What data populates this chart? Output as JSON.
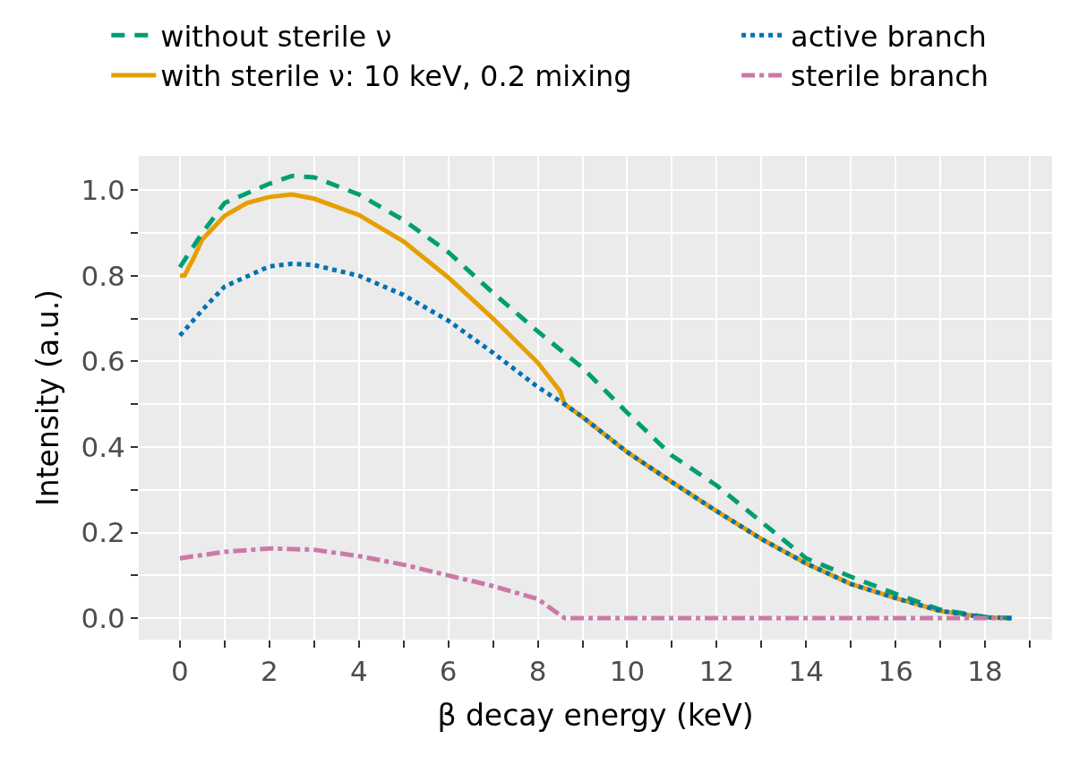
{
  "chart_data": {
    "type": "line",
    "xlabel": "β decay energy (keV)",
    "ylabel": "Intensity (a.u.)",
    "xlim": [
      -0.92,
      19.5
    ],
    "ylim": [
      -0.05,
      1.08
    ],
    "xticks": [
      0,
      {
        "value": 1,
        "label": null
      },
      2,
      {
        "value": 3,
        "label": null
      },
      4,
      {
        "value": 5,
        "label": null
      },
      6,
      {
        "value": 7,
        "label": null
      },
      8,
      {
        "value": 9,
        "label": null
      },
      10,
      {
        "value": 11,
        "label": null
      },
      12,
      {
        "value": 13,
        "label": null
      },
      14,
      {
        "value": 15,
        "label": null
      },
      16,
      {
        "value": 17,
        "label": null
      },
      18,
      {
        "value": 19,
        "label": null
      }
    ],
    "yticks": [
      {
        "value": 0,
        "label": "0.0"
      },
      {
        "value": 0.1,
        "label": null
      },
      {
        "value": 0.2,
        "label": "0.2"
      },
      {
        "value": 0.3,
        "label": null
      },
      {
        "value": 0.4,
        "label": "0.4"
      },
      {
        "value": 0.5,
        "label": null
      },
      {
        "value": 0.6,
        "label": "0.6"
      },
      {
        "value": 0.7,
        "label": null
      },
      {
        "value": 0.8,
        "label": "0.8"
      },
      {
        "value": 0.9,
        "label": null
      },
      {
        "value": 1.0,
        "label": "1.0"
      }
    ],
    "grid": true,
    "legend": "top",
    "series": [
      {
        "name": "without sterile ν",
        "color": "#009e73",
        "line_style": "dashed",
        "x": [
          0,
          0.5,
          1,
          2,
          2.5,
          3,
          4,
          5,
          6,
          7,
          8,
          9,
          10,
          11,
          12,
          13,
          14,
          15,
          16,
          17,
          18,
          18.6
        ],
        "values": [
          0.82,
          0.9,
          0.97,
          1.015,
          1.033,
          1.03,
          0.99,
          0.93,
          0.855,
          0.76,
          0.67,
          0.585,
          0.48,
          0.38,
          0.31,
          0.225,
          0.14,
          0.097,
          0.057,
          0.02,
          0.003,
          0
        ]
      },
      {
        "name": "active branch",
        "color": "#0072b2",
        "line_style": "dotted",
        "x": [
          0,
          0.5,
          1,
          2,
          2.5,
          3,
          4,
          5,
          6,
          7,
          8,
          8.6,
          9,
          10,
          11,
          12,
          13,
          14,
          15,
          16,
          17,
          18,
          18.6
        ],
        "values": [
          0.66,
          0.72,
          0.775,
          0.822,
          0.828,
          0.825,
          0.8,
          0.755,
          0.695,
          0.62,
          0.54,
          0.5,
          0.47,
          0.388,
          0.318,
          0.25,
          0.185,
          0.128,
          0.08,
          0.047,
          0.017,
          0.002,
          0
        ]
      },
      {
        "name": "with sterile ν: 10 keV, 0.2 mixing",
        "color": "#e69f00",
        "line_style": "solid",
        "x": [
          0,
          0.1,
          0.3,
          0.5,
          1,
          1.5,
          2,
          2.5,
          3,
          4,
          5,
          6,
          7,
          8,
          8.5,
          8.6,
          9,
          10,
          11,
          12,
          13,
          14,
          15,
          16,
          17,
          18,
          18.6
        ],
        "values": [
          0.8,
          0.8,
          0.84,
          0.885,
          0.94,
          0.97,
          0.984,
          0.99,
          0.98,
          0.942,
          0.88,
          0.796,
          0.7,
          0.597,
          0.53,
          0.5,
          0.47,
          0.388,
          0.318,
          0.25,
          0.185,
          0.128,
          0.08,
          0.047,
          0.017,
          0.002,
          0
        ]
      },
      {
        "name": "sterile branch",
        "color": "#cc79a7",
        "line_style": "dashdot",
        "x": [
          0,
          1,
          2,
          3,
          4,
          5,
          6,
          7,
          8,
          8.6,
          9,
          10,
          12,
          14,
          16,
          18,
          18.4
        ],
        "values": [
          0.14,
          0.155,
          0.163,
          0.16,
          0.145,
          0.125,
          0.1,
          0.075,
          0.045,
          0,
          0,
          0,
          0,
          0,
          0,
          0,
          0
        ]
      }
    ]
  }
}
